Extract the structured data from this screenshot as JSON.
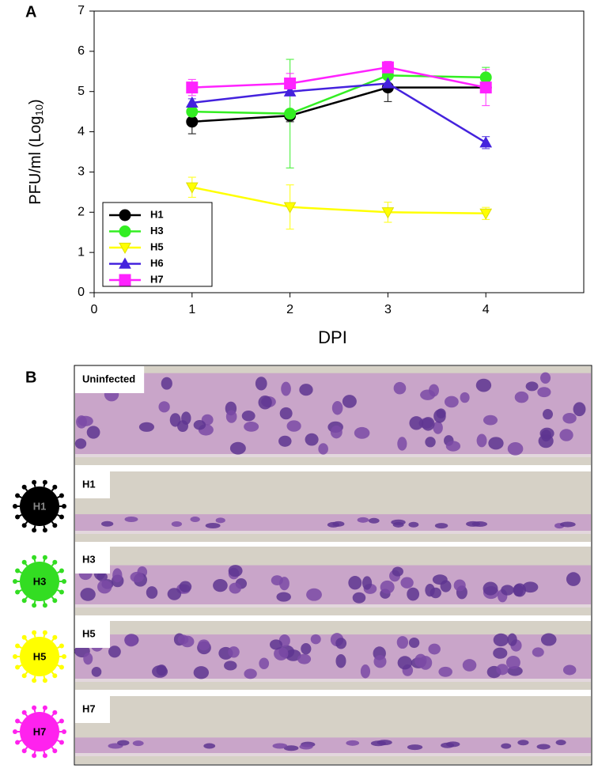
{
  "chart_data": {
    "type": "line",
    "panel_label": "A",
    "xlabel": "DPI",
    "ylabel": "PFU/ml (Log",
    "ylabel_sub": "10",
    "ylabel_end": ")",
    "x": [
      1,
      2,
      3,
      4
    ],
    "xlim": [
      0,
      5
    ],
    "xticks": [
      0,
      1,
      2,
      3,
      4
    ],
    "ylim": [
      0,
      7
    ],
    "yticks": [
      0,
      1,
      2,
      3,
      4,
      5,
      6,
      7
    ],
    "legend": "lower left",
    "series": [
      {
        "name": "H1",
        "color": "#000000",
        "marker": "circle",
        "values": [
          4.25,
          4.4,
          5.1,
          5.1
        ],
        "errors": [
          0.3,
          0.15,
          0.35,
          0.1
        ]
      },
      {
        "name": "H3",
        "color": "#33ee22",
        "marker": "circle",
        "values": [
          4.5,
          4.45,
          5.4,
          5.35
        ],
        "errors": [
          0.1,
          1.35,
          0.1,
          0.25
        ]
      },
      {
        "name": "H5",
        "color": "#ffff00",
        "marker": "triangle-down",
        "values": [
          2.62,
          2.13,
          2.0,
          1.97
        ],
        "errors": [
          0.25,
          0.55,
          0.25,
          0.15
        ]
      },
      {
        "name": "H6",
        "color": "#4422dd",
        "marker": "triangle-up",
        "values": [
          4.72,
          5.0,
          5.2,
          3.73
        ],
        "errors": [
          0.1,
          0.1,
          0.1,
          0.15
        ]
      },
      {
        "name": "H7",
        "color": "#ff22ff",
        "marker": "square",
        "values": [
          5.1,
          5.2,
          5.6,
          5.1
        ],
        "errors": [
          0.2,
          0.25,
          0.15,
          0.45
        ]
      }
    ]
  },
  "panel_b": {
    "label": "B",
    "strips": [
      {
        "label": "Uninfected"
      },
      {
        "label": "H1"
      },
      {
        "label": "H3"
      },
      {
        "label": "H5"
      },
      {
        "label": "H7"
      }
    ],
    "icons": [
      {
        "label": "H1",
        "color": "#000000"
      },
      {
        "label": "H3",
        "color": "#33dd22"
      },
      {
        "label": "H5",
        "color": "#ffff00"
      },
      {
        "label": "H7",
        "color": "#ff22ee"
      }
    ]
  }
}
